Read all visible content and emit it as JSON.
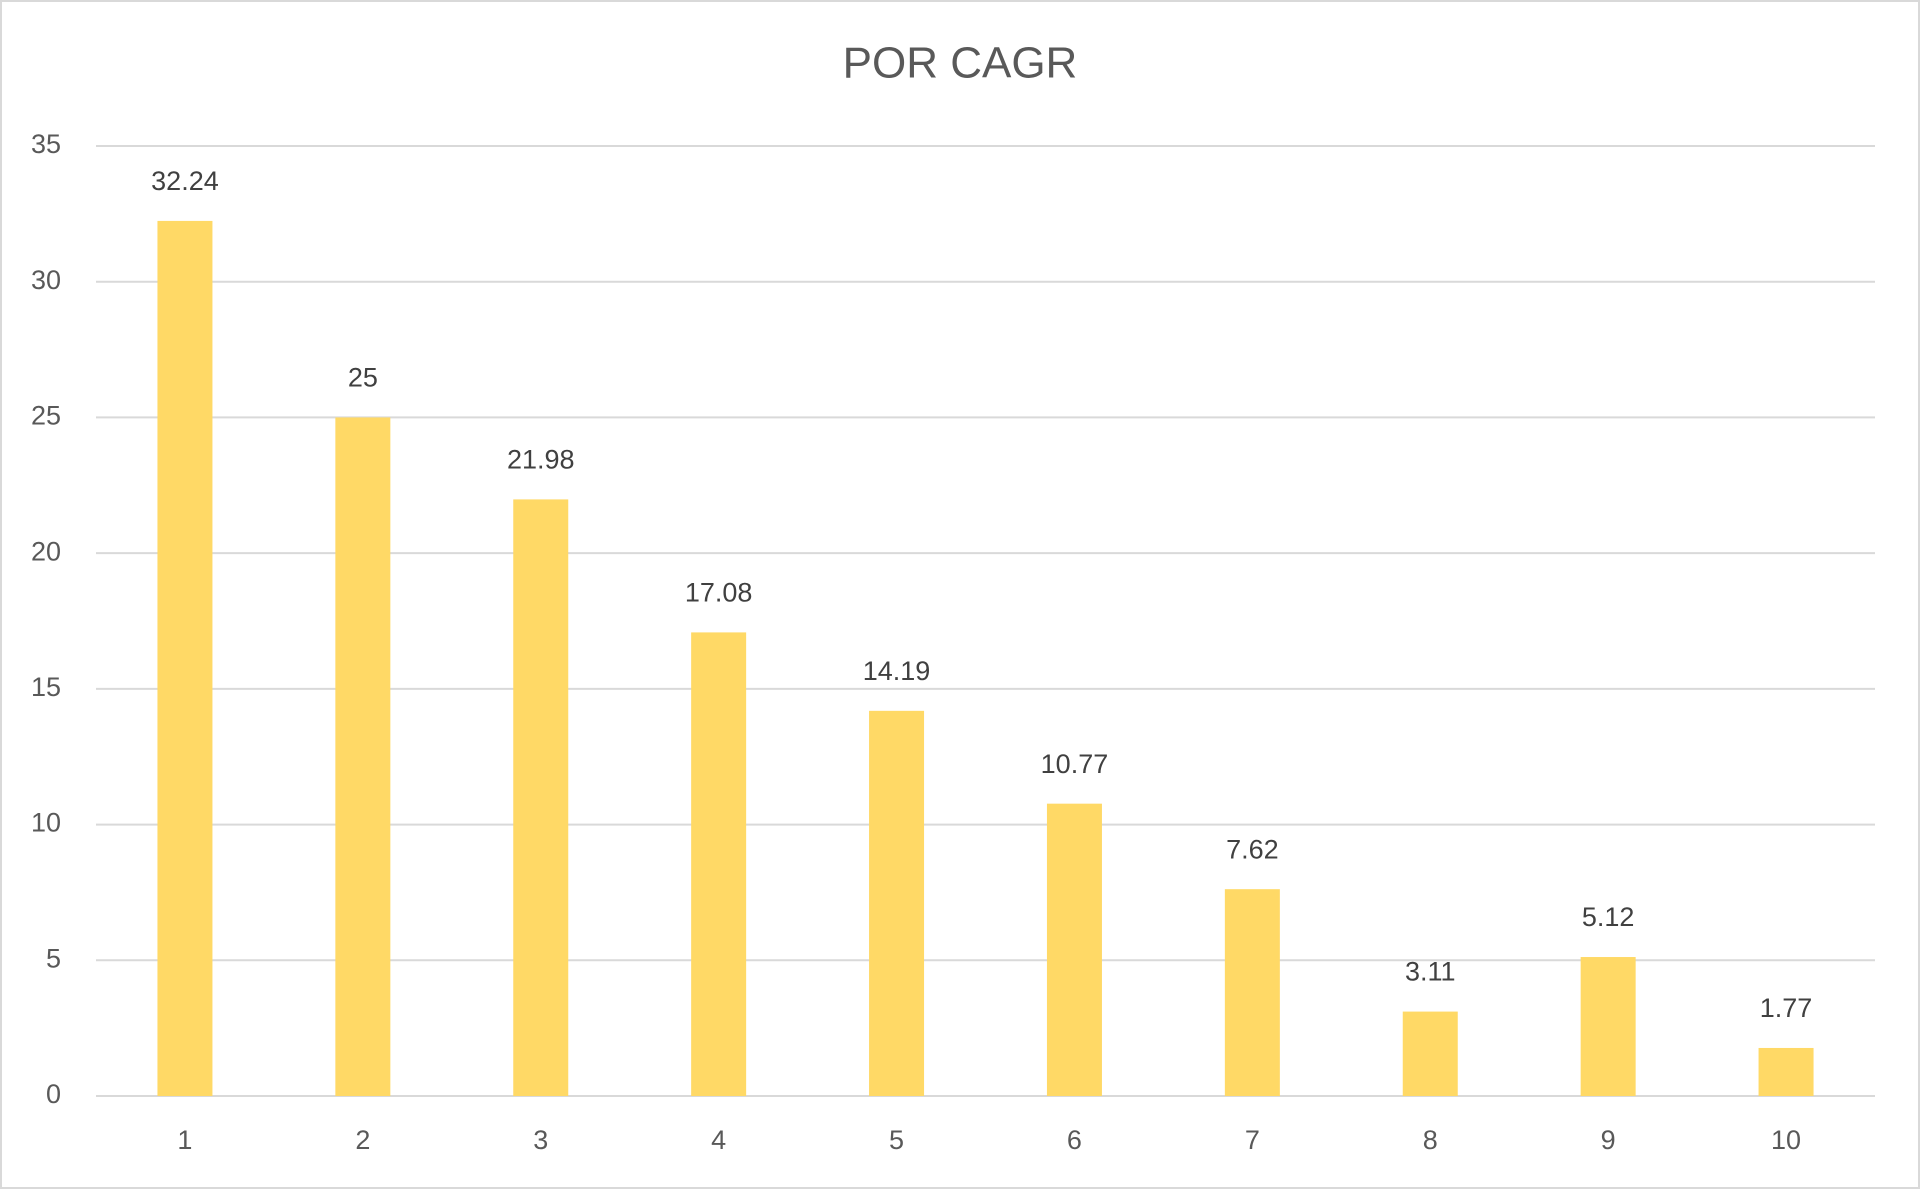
{
  "chart_data": {
    "type": "bar",
    "title": "POR CAGR",
    "categories": [
      "1",
      "2",
      "3",
      "4",
      "5",
      "6",
      "7",
      "8",
      "9",
      "10"
    ],
    "values": [
      32.24,
      25,
      21.98,
      17.08,
      14.19,
      10.77,
      7.62,
      3.11,
      5.12,
      1.77
    ],
    "color": "#ffd966",
    "ylim": [
      0,
      35
    ],
    "yticks": [
      0,
      5,
      10,
      15,
      20,
      25,
      30,
      35
    ],
    "grid": true
  }
}
